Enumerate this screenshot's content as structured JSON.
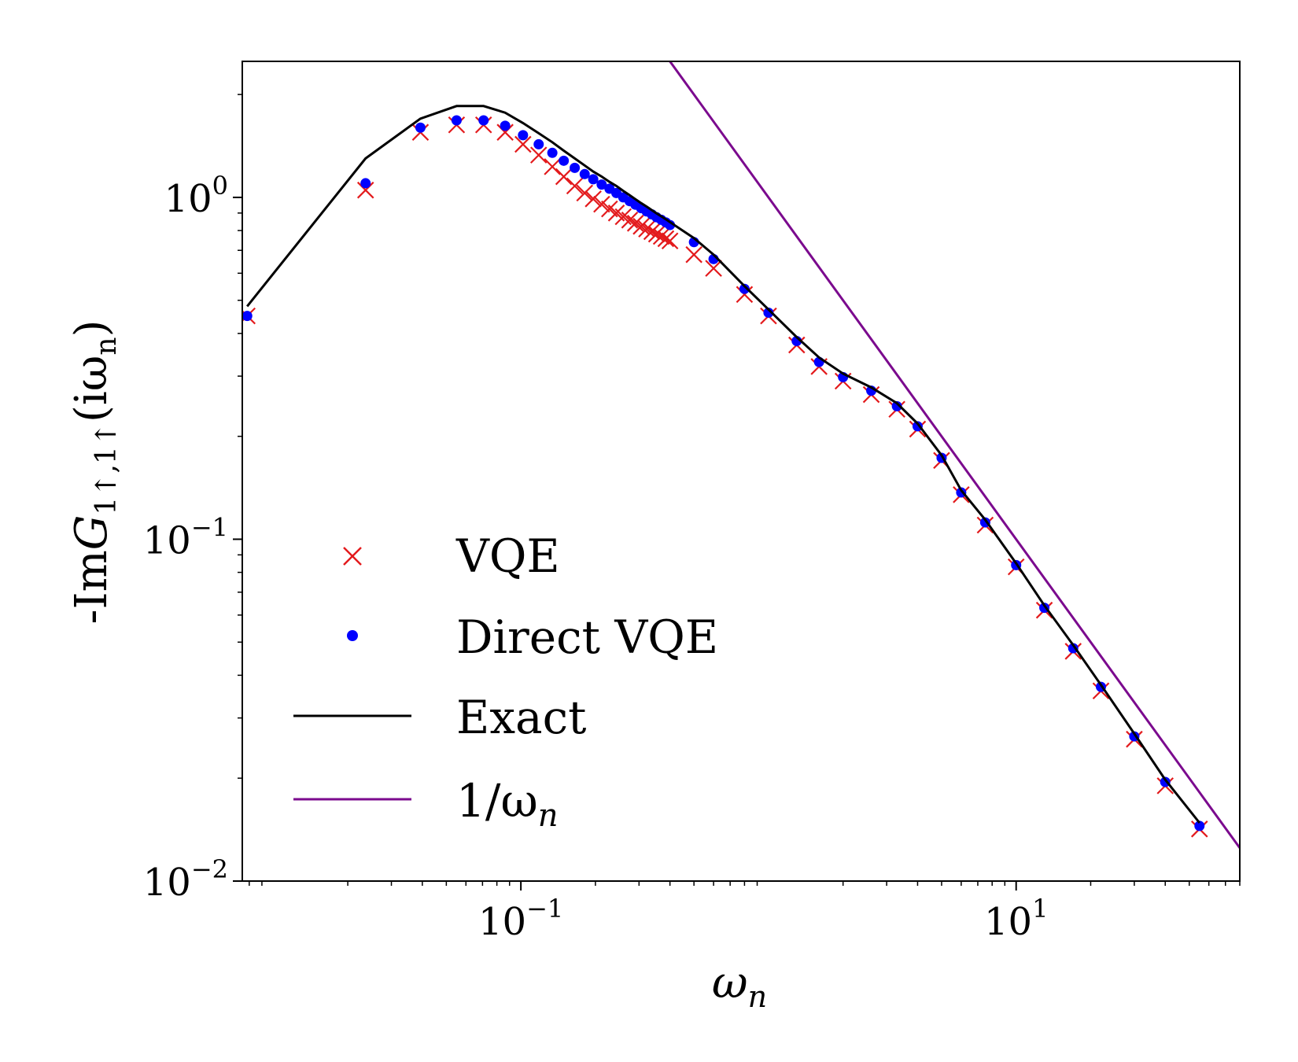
{
  "chart_data": {
    "type": "line",
    "title": "",
    "xlabel": "ω",
    "xlabel_sub": "n",
    "ylabel_parts": {
      "prefix": "-Im",
      "main": "G",
      "sub": "1↑,1↑",
      "arg": "(iω",
      "arg_sub": "n",
      "arg_end": ")"
    },
    "xscale": "log",
    "yscale": "log",
    "xlim": [
      0.0075,
      80
    ],
    "ylim": [
      0.01,
      2.5
    ],
    "x_ticks": [
      {
        "value": 0.1,
        "base": "10",
        "exp": "−1"
      },
      {
        "value": 10,
        "base": "10",
        "exp": "1"
      }
    ],
    "y_ticks": [
      {
        "value": 0.01,
        "base": "10",
        "exp": "−2"
      },
      {
        "value": 0.1,
        "base": "10",
        "exp": "−1"
      },
      {
        "value": 1,
        "base": "10",
        "exp": "0"
      }
    ],
    "grid": false,
    "legend_position": "lower-left",
    "series": [
      {
        "name": "VQE",
        "kind": "marker-x",
        "color": "#e31a1c",
        "x": [
          0.00785,
          0.0236,
          0.0393,
          0.055,
          0.0707,
          0.0864,
          0.102,
          0.118,
          0.134,
          0.149,
          0.165,
          0.181,
          0.196,
          0.212,
          0.228,
          0.243,
          0.259,
          0.275,
          0.29,
          0.306,
          0.322,
          0.338,
          0.353,
          0.369,
          0.385,
          0.4,
          0.5,
          0.6,
          0.8,
          1.0,
          1.3,
          1.6,
          2.0,
          2.6,
          3.3,
          4.0,
          5.0,
          6.0,
          7.5,
          10.0,
          13.0,
          17.0,
          22.0,
          30.0,
          40.0,
          55.0
        ],
        "values": [
          0.45,
          1.05,
          1.55,
          1.63,
          1.63,
          1.55,
          1.43,
          1.33,
          1.23,
          1.15,
          1.08,
          1.03,
          0.99,
          0.955,
          0.925,
          0.9,
          0.878,
          0.858,
          0.84,
          0.823,
          0.808,
          0.794,
          0.781,
          0.769,
          0.757,
          0.746,
          0.68,
          0.62,
          0.52,
          0.45,
          0.37,
          0.32,
          0.29,
          0.265,
          0.24,
          0.21,
          0.17,
          0.135,
          0.11,
          0.083,
          0.062,
          0.047,
          0.036,
          0.026,
          0.019,
          0.0142
        ]
      },
      {
        "name": "Direct VQE",
        "kind": "marker-dot",
        "color": "#0000ff",
        "x": [
          0.00785,
          0.0236,
          0.0393,
          0.055,
          0.0707,
          0.0864,
          0.102,
          0.118,
          0.134,
          0.149,
          0.165,
          0.181,
          0.196,
          0.212,
          0.228,
          0.243,
          0.259,
          0.275,
          0.29,
          0.306,
          0.322,
          0.338,
          0.353,
          0.369,
          0.385,
          0.4,
          0.5,
          0.6,
          0.8,
          1.0,
          1.3,
          1.6,
          2.0,
          2.6,
          3.3,
          4.0,
          5.0,
          6.0,
          7.5,
          10.0,
          13.0,
          17.0,
          22.0,
          30.0,
          40.0,
          55.0
        ],
        "values": [
          0.45,
          1.1,
          1.6,
          1.68,
          1.68,
          1.62,
          1.52,
          1.43,
          1.35,
          1.28,
          1.22,
          1.17,
          1.13,
          1.09,
          1.06,
          1.03,
          1.0,
          0.975,
          0.952,
          0.93,
          0.91,
          0.892,
          0.875,
          0.86,
          0.845,
          0.83,
          0.74,
          0.66,
          0.54,
          0.46,
          0.38,
          0.33,
          0.298,
          0.272,
          0.245,
          0.214,
          0.173,
          0.137,
          0.112,
          0.084,
          0.063,
          0.048,
          0.037,
          0.0265,
          0.0195,
          0.0145
        ]
      },
      {
        "name": "Exact",
        "kind": "line",
        "color": "#000000",
        "x": [
          0.00785,
          0.0236,
          0.0393,
          0.055,
          0.0707,
          0.0864,
          0.102,
          0.118,
          0.134,
          0.149,
          0.165,
          0.181,
          0.196,
          0.212,
          0.228,
          0.243,
          0.259,
          0.275,
          0.29,
          0.306,
          0.322,
          0.338,
          0.353,
          0.369,
          0.385,
          0.4,
          0.5,
          0.6,
          0.8,
          1.0,
          1.3,
          1.6,
          2.0,
          2.6,
          3.3,
          4.0,
          5.0,
          6.0,
          7.5,
          10.0,
          13.0,
          17.0,
          22.0,
          30.0,
          40.0,
          55.0
        ],
        "values": [
          0.48,
          1.3,
          1.7,
          1.85,
          1.85,
          1.77,
          1.65,
          1.54,
          1.45,
          1.37,
          1.3,
          1.24,
          1.19,
          1.15,
          1.11,
          1.08,
          1.045,
          1.015,
          0.988,
          0.962,
          0.94,
          0.918,
          0.898,
          0.88,
          0.863,
          0.847,
          0.76,
          0.68,
          0.55,
          0.47,
          0.39,
          0.34,
          0.305,
          0.278,
          0.25,
          0.218,
          0.176,
          0.139,
          0.114,
          0.085,
          0.064,
          0.049,
          0.0375,
          0.027,
          0.0198,
          0.0148
        ]
      },
      {
        "name": "1/ω",
        "name_sub": "n",
        "kind": "line",
        "color": "#7b0a8e",
        "x": [
          0.4,
          80
        ],
        "values": [
          2.5,
          0.0125
        ]
      }
    ]
  }
}
